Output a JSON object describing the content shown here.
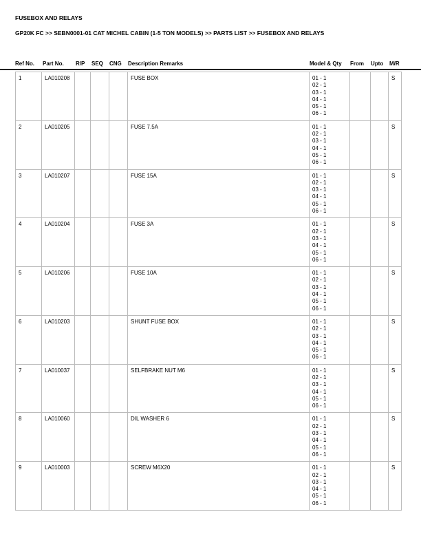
{
  "title": "FUSEBOX AND RELAYS",
  "breadcrumb": "GP20K FC >> SEBN0001-01 CAT MICHEL CABIN (1-5 TON MODELS) >> PARTS LIST >> FUSEBOX AND RELAYS",
  "headers": {
    "ref": "Ref No.",
    "part": "Part No.",
    "rp": "R/P",
    "seq": "SEQ",
    "cng": "CNG",
    "desc": "Description Remarks",
    "model": "Model & Qty",
    "from": "From",
    "upto": "Upto",
    "mr": "M/R"
  },
  "rows": [
    {
      "ref": "1",
      "part": "LA010208",
      "desc": "FUSE BOX",
      "mr": "S"
    },
    {
      "ref": "2",
      "part": "LA010205",
      "desc": "FUSE 7.5A",
      "mr": "S"
    },
    {
      "ref": "3",
      "part": "LA010207",
      "desc": "FUSE 15A",
      "mr": "S"
    },
    {
      "ref": "4",
      "part": "LA010204",
      "desc": "FUSE 3A",
      "mr": "S"
    },
    {
      "ref": "5",
      "part": "LA010206",
      "desc": "FUSE 10A",
      "mr": "S"
    },
    {
      "ref": "6",
      "part": "LA010203",
      "desc": "SHUNT FUSE BOX",
      "mr": "S"
    },
    {
      "ref": "7",
      "part": "LA010037",
      "desc": "SELFBRAKE NUT M6",
      "mr": "S"
    },
    {
      "ref": "8",
      "part": "LA010060",
      "desc": "DIL WASHER 6",
      "mr": "S"
    },
    {
      "ref": "9",
      "part": "LA010003",
      "desc": "SCREW M6X20",
      "mr": "S"
    }
  ],
  "model_qty": [
    "01 - 1",
    "02 - 1",
    "03 - 1",
    "04 - 1",
    "05 - 1",
    "06 - 1"
  ]
}
